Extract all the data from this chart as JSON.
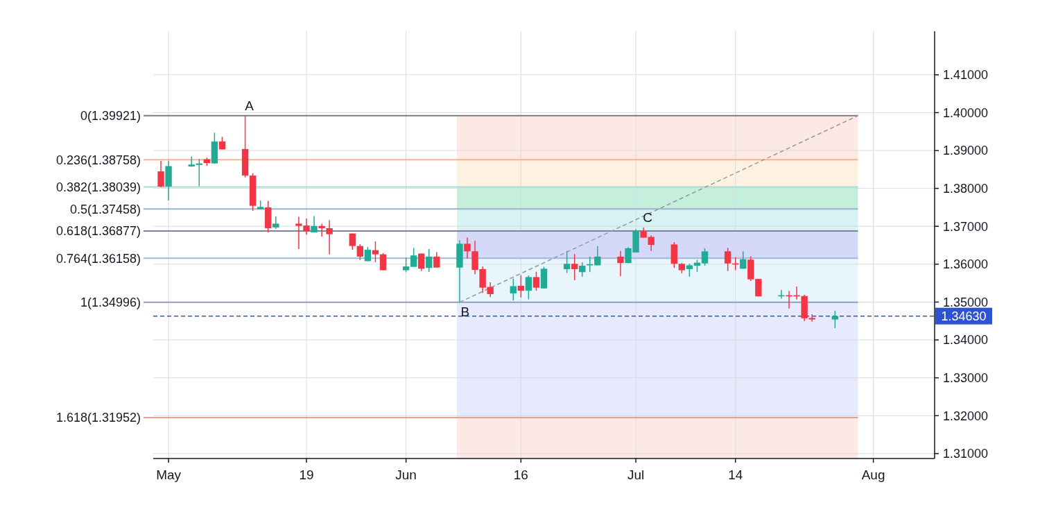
{
  "chart_data": {
    "type": "candlestick",
    "x": [
      "--04-30",
      "--05-01",
      "--05-04",
      "--05-05",
      "--05-06",
      "--05-07",
      "--05-08",
      "--05-11",
      "--05-12",
      "--05-13",
      "--05-14",
      "--05-15",
      "--05-18",
      "--05-19",
      "--05-20",
      "--05-21",
      "--05-22",
      "--05-25",
      "--05-26",
      "--05-27",
      "--05-28",
      "--05-29",
      "--06-01",
      "--06-02",
      "--06-03",
      "--06-04",
      "--06-05",
      "--06-08",
      "--06-09",
      "--06-10",
      "--06-11",
      "--06-12",
      "--06-15",
      "--06-16",
      "--06-17",
      "--06-18",
      "--06-19",
      "--06-22",
      "--06-23",
      "--06-24",
      "--06-25",
      "--06-26",
      "--06-29",
      "--06-30",
      "--07-01",
      "--07-02",
      "--07-03",
      "--07-06",
      "--07-07",
      "--07-08",
      "--07-09",
      "--07-10",
      "--07-13",
      "--07-14",
      "--07-15",
      "--07-16",
      "--07-17",
      "--07-20",
      "--07-21",
      "--07-22",
      "--07-23",
      "--07-24",
      "--07-27"
    ],
    "ohlc": [
      [
        1.3845,
        1.3873,
        1.3803,
        1.3805
      ],
      [
        1.3805,
        1.3873,
        1.3768,
        1.3859
      ],
      [
        1.3858,
        1.3884,
        1.3857,
        1.3863
      ],
      [
        1.3862,
        1.3878,
        1.3806,
        1.3866
      ],
      [
        1.3877,
        1.3881,
        1.386,
        1.3867
      ],
      [
        1.3866,
        1.3947,
        1.3866,
        1.3924
      ],
      [
        1.3924,
        1.3936,
        1.3903,
        1.3903
      ],
      [
        1.3904,
        1.39921,
        1.3829,
        1.3834
      ],
      [
        1.3834,
        1.384,
        1.3741,
        1.3754
      ],
      [
        1.3745,
        1.3768,
        1.3745,
        1.3751
      ],
      [
        1.375,
        1.3767,
        1.3684,
        1.3695
      ],
      [
        1.3697,
        1.3726,
        1.3693,
        1.3707
      ],
      [
        1.3707,
        1.3725,
        1.364,
        1.3701
      ],
      [
        1.3702,
        1.372,
        1.3678,
        1.3687
      ],
      [
        1.3684,
        1.3727,
        1.3684,
        1.3701
      ],
      [
        1.3701,
        1.3707,
        1.3673,
        1.3695
      ],
      [
        1.3695,
        1.3716,
        1.3626,
        1.3679
      ],
      [
        1.3681,
        1.3681,
        1.3638,
        1.3648
      ],
      [
        1.3648,
        1.3653,
        1.3611,
        1.362
      ],
      [
        1.3608,
        1.3646,
        1.3608,
        1.3638
      ],
      [
        1.3637,
        1.366,
        1.3605,
        1.3626
      ],
      [
        1.3626,
        1.3629,
        1.3584,
        1.3584
      ],
      [
        1.3584,
        1.3617,
        1.3579,
        1.3594
      ],
      [
        1.3593,
        1.3643,
        1.3593,
        1.3623
      ],
      [
        1.3628,
        1.3628,
        1.3582,
        1.3588
      ],
      [
        1.359,
        1.364,
        1.3579,
        1.362
      ],
      [
        1.362,
        1.3632,
        1.3591,
        1.3591
      ],
      [
        1.3591,
        1.3663,
        1.34996,
        1.3654
      ],
      [
        1.3654,
        1.367,
        1.3615,
        1.3634
      ],
      [
        1.3634,
        1.3662,
        1.3573,
        1.3585
      ],
      [
        1.3587,
        1.3594,
        1.3524,
        1.3538
      ],
      [
        1.354,
        1.3552,
        1.3513,
        1.3521
      ],
      [
        1.3523,
        1.3562,
        1.3504,
        1.3542
      ],
      [
        1.3543,
        1.3571,
        1.3512,
        1.353
      ],
      [
        1.353,
        1.357,
        1.3507,
        1.3566
      ],
      [
        1.3566,
        1.358,
        1.353,
        1.3538
      ],
      [
        1.3536,
        1.3593,
        1.3536,
        1.3588
      ],
      [
        1.3587,
        1.3635,
        1.3577,
        1.3601
      ],
      [
        1.3601,
        1.3627,
        1.3558,
        1.3587
      ],
      [
        1.3579,
        1.3605,
        1.3567,
        1.3596
      ],
      [
        1.3597,
        1.362,
        1.3579,
        1.36
      ],
      [
        1.3597,
        1.3648,
        1.3597,
        1.362
      ],
      [
        1.362,
        1.3635,
        1.3568,
        1.3603
      ],
      [
        1.3603,
        1.3645,
        1.3603,
        1.3642
      ],
      [
        1.3631,
        1.3692,
        1.3631,
        1.3687
      ],
      [
        1.3687,
        1.3697,
        1.367,
        1.367
      ],
      [
        1.3672,
        1.3676,
        1.3635,
        1.3651
      ],
      [
        1.3652,
        1.3658,
        1.359,
        1.3601
      ],
      [
        1.3601,
        1.3603,
        1.3576,
        1.3584
      ],
      [
        1.3587,
        1.3601,
        1.3567,
        1.3597
      ],
      [
        1.3596,
        1.3611,
        1.358,
        1.3604
      ],
      [
        1.3602,
        1.3642,
        1.3596,
        1.3634
      ],
      [
        1.3634,
        1.3643,
        1.3582,
        1.3602
      ],
      [
        1.3602,
        1.3619,
        1.3584,
        1.3599
      ],
      [
        1.3588,
        1.3634,
        1.3588,
        1.3613
      ],
      [
        1.3612,
        1.3621,
        1.3556,
        1.356
      ],
      [
        1.3561,
        1.3561,
        1.3515,
        1.3515
      ],
      [
        1.3515,
        1.3532,
        1.3509,
        1.3518
      ],
      [
        1.3518,
        1.3529,
        1.3483,
        1.3515
      ],
      [
        1.3518,
        1.3541,
        1.3507,
        1.3515
      ],
      [
        1.3516,
        1.3519,
        1.345,
        1.3457
      ],
      [
        1.3458,
        1.3468,
        1.3448,
        1.3454
      ],
      [
        1.3454,
        1.3477,
        1.3431,
        1.3463
      ]
    ],
    "colors": [
      "#f23645",
      "#22ab94",
      "#22ab94",
      "#22ab94",
      "#f23645",
      "#22ab94",
      "#f23645",
      "#f23645",
      "#f23645",
      "#22ab94",
      "#f23645",
      "#22ab94",
      "#f23645",
      "#f23645",
      "#22ab94",
      "#f23645",
      "#f23645",
      "#f23645",
      "#f23645",
      "#22ab94",
      "#f23645",
      "#f23645",
      "#22ab94",
      "#22ab94",
      "#f23645",
      "#22ab94",
      "#f23645",
      "#22ab94",
      "#f23645",
      "#f23645",
      "#f23645",
      "#f23645",
      "#22ab94",
      "#f23645",
      "#22ab94",
      "#f23645",
      "#22ab94",
      "#22ab94",
      "#f23645",
      "#22ab94",
      "#22ab94",
      "#22ab94",
      "#f23645",
      "#22ab94",
      "#22ab94",
      "#f23645",
      "#f23645",
      "#f23645",
      "#f23645",
      "#22ab94",
      "#22ab94",
      "#22ab94",
      "#f23645",
      "#f23645",
      "#22ab94",
      "#f23645",
      "#f23645",
      "#22ab94",
      "#f23645",
      "#f23645",
      "#f23645",
      "#f23645",
      "#22ab94"
    ],
    "series": [
      {
        "type": "line",
        "color": "#9598a1",
        "line_style": "dashed",
        "x": [
          "--06-08",
          "--07-30"
        ],
        "values": [
          1.34996,
          1.39921
        ]
      }
    ],
    "xlim": [
      "--04-29",
      "--08-09"
    ],
    "xticks": [
      {
        "value": "--05-01",
        "label": "May"
      },
      {
        "value": "--05-19",
        "label": "19"
      },
      {
        "value": "--06-01",
        "label": "Jun"
      },
      {
        "value": "--06-16",
        "label": "16"
      },
      {
        "value": "--07-01",
        "label": "Jul"
      },
      {
        "value": "--07-14",
        "label": "14"
      },
      {
        "value": "--08-01",
        "label": "Aug"
      }
    ],
    "ylim": [
      1.3087,
      1.4215
    ],
    "yticks": [
      {
        "value": 1.31,
        "label": "1.31000"
      },
      {
        "value": 1.32,
        "label": "1.32000"
      },
      {
        "value": 1.33,
        "label": "1.33000"
      },
      {
        "value": 1.34,
        "label": "1.34000"
      },
      {
        "value": 1.35,
        "label": "1.35000"
      },
      {
        "value": 1.36,
        "label": "1.36000"
      },
      {
        "value": 1.37,
        "label": "1.37000"
      },
      {
        "value": 1.38,
        "label": "1.38000"
      },
      {
        "value": 1.39,
        "label": "1.39000"
      },
      {
        "value": 1.4,
        "label": "1.40000"
      },
      {
        "value": 1.41,
        "label": "1.41000"
      }
    ],
    "grid": true,
    "bands": [
      {
        "axis": "y",
        "from": 1.39921,
        "to": 1.38758,
        "color": "#fde3dc"
      },
      {
        "axis": "y",
        "from": 1.38758,
        "to": 1.38039,
        "color": "#fdeedb"
      },
      {
        "axis": "y",
        "from": 1.38039,
        "to": 1.37458,
        "color": "#b5ebd3"
      },
      {
        "axis": "y",
        "from": 1.37458,
        "to": 1.36877,
        "color": "#cdeff0"
      },
      {
        "axis": "y",
        "from": 1.36877,
        "to": 1.36158,
        "color": "#c9cff7"
      },
      {
        "axis": "y",
        "from": 1.36158,
        "to": 1.34996,
        "color": "#e2f3fc"
      },
      {
        "axis": "y",
        "from": 1.34996,
        "to": 1.31952,
        "color": "#e1e4fb"
      },
      {
        "axis": "y",
        "from": 1.31952,
        "to": 1.3087,
        "color": "#fde3dc"
      }
    ],
    "ref_lines": [
      {
        "axis": "y",
        "value": 1.39921,
        "label": "0(1.39921)",
        "color": "#787b86"
      },
      {
        "axis": "y",
        "value": 1.38758,
        "label": "0.236(1.38758)",
        "color": "#f7b58f"
      },
      {
        "axis": "y",
        "value": 1.38039,
        "label": "0.382(1.38039)",
        "color": "#a9dcd0"
      },
      {
        "axis": "y",
        "value": 1.37458,
        "label": "0.5(1.37458)",
        "color": "#9fb2cc"
      },
      {
        "axis": "y",
        "value": 1.36877,
        "label": "0.618(1.36877)",
        "color": "#7a829c"
      },
      {
        "axis": "y",
        "value": 1.36158,
        "label": "0.764(1.36158)",
        "color": "#a3b6d8"
      },
      {
        "axis": "y",
        "value": 1.34996,
        "label": "1(1.34996)",
        "color": "#8e9cc2"
      },
      {
        "axis": "y",
        "value": 1.31952,
        "label": "1.618(1.31952)",
        "color": "#f29a8f"
      },
      {
        "axis": "y",
        "value": 1.3463,
        "label": "1.34630",
        "color": "#2f52d0",
        "line_style": "dashed"
      }
    ],
    "annotations": [
      {
        "text": "A",
        "x": "--05-11",
        "y": 1.39921
      },
      {
        "text": "B",
        "x": "--06-08",
        "y": 1.34996
      },
      {
        "text": "C",
        "x": "--07-02",
        "y": 1.3697
      }
    ]
  }
}
